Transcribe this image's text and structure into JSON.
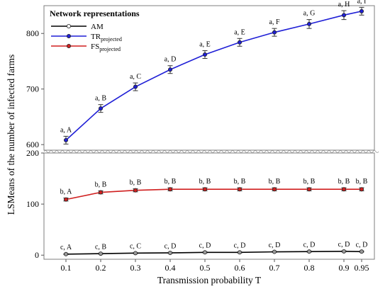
{
  "chart_data": {
    "type": "line",
    "xlabel": "Transmission probability T",
    "ylabel": "LSMeans of the number of infected farms",
    "x": [
      0.1,
      0.2,
      0.3,
      0.4,
      0.5,
      0.6,
      0.7,
      0.8,
      0.9,
      0.95
    ],
    "x_tick_labels": [
      "0.1",
      "0.2",
      "0.3",
      "0.4",
      "0.5",
      "0.6",
      "0.7",
      "0.8",
      "0.9",
      "0.95"
    ],
    "broken_y_axis": true,
    "panels": [
      {
        "ylim": [
          590,
          850
        ],
        "yticks": [
          600,
          700,
          800
        ]
      },
      {
        "ylim": [
          -8,
          200
        ],
        "yticks": [
          0,
          100,
          200
        ]
      }
    ],
    "legend": {
      "title": "Network representations",
      "placement": "top-left"
    },
    "series": [
      {
        "name": "AM",
        "name_sub": "",
        "color": "#000000",
        "panel": 1,
        "values": [
          2,
          3,
          4,
          4.5,
          5.5,
          5.5,
          6.5,
          7,
          7.5,
          7
        ],
        "errors": [
          1,
          1,
          1,
          1,
          1,
          1,
          1,
          1,
          1,
          1
        ],
        "labels": [
          "c, A",
          "c, B",
          "c, C",
          "c, D",
          "c, D",
          "c, D",
          "c, D",
          "c, D",
          "c, D",
          "c, D"
        ]
      },
      {
        "name": "TR",
        "name_sub": "projected",
        "color": "#1f1fd6",
        "panel": 0,
        "values": [
          608,
          665,
          704,
          735,
          762,
          784,
          802,
          817,
          833,
          840
        ],
        "errors": [
          7,
          7,
          7,
          7,
          7,
          7,
          7,
          8,
          8,
          7
        ],
        "labels": [
          "a, A",
          "a, B",
          "a, C",
          "a, D",
          "a, E",
          "a, E",
          "a, F",
          "a, G",
          "a, H",
          "a, I"
        ]
      },
      {
        "name": "FS",
        "name_sub": "projected",
        "color": "#d01f1f",
        "panel": 1,
        "values": [
          109,
          123,
          127,
          129,
          129,
          129,
          129,
          129,
          129,
          129
        ],
        "errors": [
          3,
          3,
          3,
          3,
          3,
          3,
          3,
          3,
          3,
          3
        ],
        "labels": [
          "b, A",
          "b, B",
          "b, B",
          "b, B",
          "b, B",
          "b, B",
          "b, B",
          "b, B",
          "b, B",
          "b, B"
        ]
      }
    ]
  }
}
